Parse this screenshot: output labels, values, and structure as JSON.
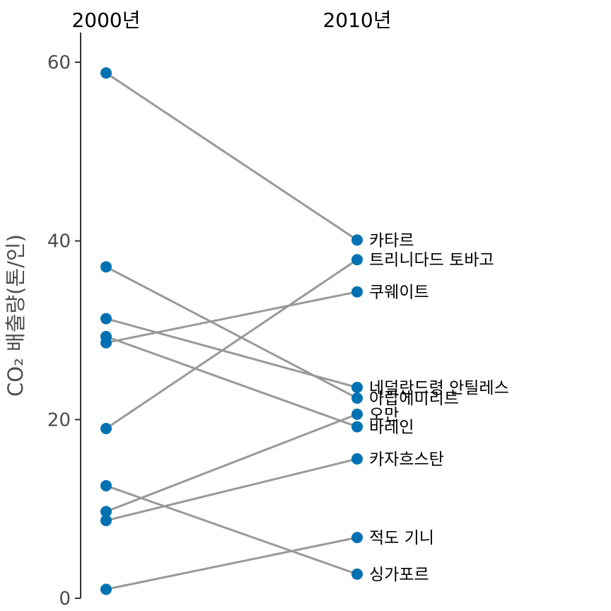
{
  "chart_data": {
    "type": "line",
    "subtype": "slopegraph",
    "x_labels": [
      "2000년",
      "2010년"
    ],
    "ylabel": "CO₂ 배출량(톤/인)",
    "ylim": [
      0,
      62
    ],
    "yticks": [
      0,
      20,
      40,
      60
    ],
    "series": [
      {
        "name": "카타르",
        "values": [
          58.8,
          40.1
        ]
      },
      {
        "name": "트리니다드 토바고",
        "values": [
          19.0,
          37.9
        ]
      },
      {
        "name": "쿠웨이트",
        "values": [
          28.6,
          34.3
        ]
      },
      {
        "name": "네덜란드령 안틸레스",
        "values": [
          31.3,
          23.6
        ]
      },
      {
        "name": "아랍에미리트",
        "values": [
          37.1,
          22.4
        ]
      },
      {
        "name": "오만",
        "values": [
          9.7,
          20.6
        ]
      },
      {
        "name": "바레인",
        "values": [
          29.3,
          19.2
        ]
      },
      {
        "name": "카자흐스탄",
        "values": [
          8.7,
          15.6
        ]
      },
      {
        "name": "적도 기니",
        "values": [
          1.0,
          6.8
        ]
      },
      {
        "name": "싱가포르",
        "values": [
          12.6,
          2.7
        ]
      }
    ],
    "colors": {
      "point": "#0072b2",
      "line": "#999999",
      "axis": "#333333"
    },
    "grid": false
  }
}
